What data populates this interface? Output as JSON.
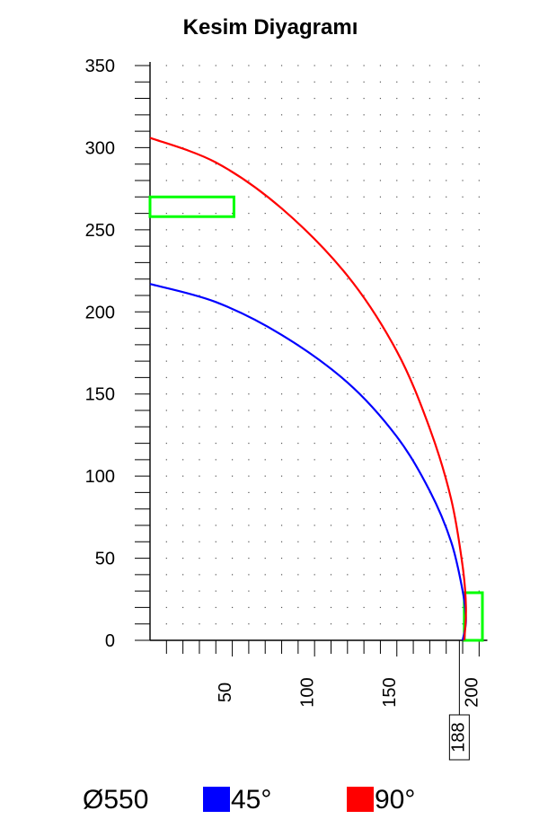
{
  "chart_data": {
    "type": "line",
    "title": "Kesim Diyagramı",
    "xlabel": "",
    "ylabel": "",
    "xlim": [
      0,
      205
    ],
    "ylim": [
      0,
      350
    ],
    "grid": true,
    "y_ticks": [
      "0",
      "50",
      "100",
      "150",
      "200",
      "250",
      "300",
      "350"
    ],
    "y_tick_values": [
      0,
      50,
      100,
      150,
      200,
      250,
      300,
      350
    ],
    "x_ticks": [
      "50",
      "100",
      "150",
      "200"
    ],
    "x_tick_values": [
      50,
      100,
      150,
      200
    ],
    "marker_value": 188,
    "marker_label": "188",
    "series": [
      {
        "name": "45°",
        "color": "#0000ff",
        "points": [
          [
            0,
            217
          ],
          [
            40,
            206
          ],
          [
            80,
            186
          ],
          [
            120,
            157
          ],
          [
            150,
            124
          ],
          [
            170,
            91
          ],
          [
            183,
            60
          ],
          [
            190,
            30
          ],
          [
            192,
            12
          ],
          [
            190,
            0
          ]
        ]
      },
      {
        "name": "90°",
        "color": "#ff0000",
        "points": [
          [
            0,
            306
          ],
          [
            40,
            291
          ],
          [
            80,
            263
          ],
          [
            120,
            222
          ],
          [
            150,
            176
          ],
          [
            170,
            129
          ],
          [
            183,
            86
          ],
          [
            190,
            45
          ],
          [
            192,
            20
          ],
          [
            191,
            0
          ]
        ]
      }
    ],
    "rectangles": [
      {
        "x0": 0,
        "x1": 51,
        "y0": 258,
        "y1": 270,
        "color": "#00ff00"
      },
      {
        "x0": 191,
        "x1": 202,
        "y0": 0,
        "y1": 29,
        "color": "#00ff00"
      }
    ],
    "legend": {
      "placement": "bottom",
      "diameter_label": "Ø550",
      "entries": [
        {
          "label": "45°",
          "color": "#0000ff"
        },
        {
          "label": "90°",
          "color": "#ff0000"
        }
      ]
    }
  }
}
